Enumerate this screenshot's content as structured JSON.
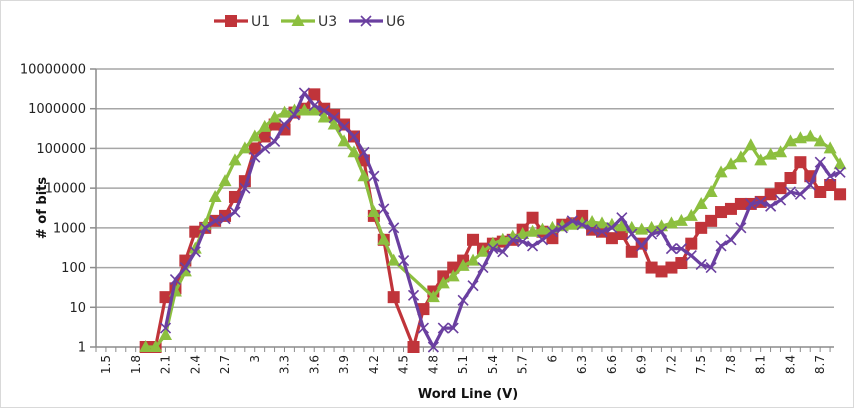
{
  "chart_data": {
    "type": "line",
    "title": "",
    "xlabel": "Word Line (V)",
    "ylabel": "# of bits",
    "yscale": "log",
    "ylim": [
      1,
      10000000
    ],
    "xlim": [
      1.5,
      8.9
    ],
    "grid": "horizontal",
    "legend_position": "top",
    "y_tick_labels": [
      "1",
      "10",
      "100",
      "1000",
      "10000",
      "100000",
      "1000000",
      "10000000"
    ],
    "x_tick_labels": [
      "1.5",
      "1.8",
      "2.1",
      "2.4",
      "2.7",
      "3",
      "3.3",
      "3.6",
      "3.9",
      "4.2",
      "4.5",
      "4.8",
      "5.1",
      "5.4",
      "5.7",
      "6",
      "6.3",
      "6.6",
      "6.9",
      "7.2",
      "7.5",
      "7.8",
      "8.1",
      "8.4",
      "8.7"
    ],
    "series": [
      {
        "name": "U1",
        "color": "#c0343a",
        "marker": "square",
        "x": [
          1.9,
          2.0,
          2.1,
          2.2,
          2.3,
          2.4,
          2.5,
          2.6,
          2.7,
          2.8,
          2.9,
          3.0,
          3.1,
          3.2,
          3.3,
          3.4,
          3.5,
          3.6,
          3.7,
          3.8,
          3.9,
          4.0,
          4.1,
          4.2,
          4.3,
          4.4,
          4.6,
          4.7,
          4.8,
          4.9,
          5.0,
          5.1,
          5.2,
          5.3,
          5.4,
          5.5,
          5.6,
          5.7,
          5.8,
          5.9,
          6.0,
          6.1,
          6.2,
          6.3,
          6.4,
          6.5,
          6.6,
          6.7,
          6.8,
          6.9,
          7.0,
          7.1,
          7.2,
          7.3,
          7.4,
          7.5,
          7.6,
          7.7,
          7.8,
          7.9,
          8.0,
          8.1,
          8.2,
          8.3,
          8.4,
          8.5,
          8.6,
          8.7,
          8.8,
          8.9
        ],
        "values": [
          1,
          1,
          18,
          30,
          150,
          800,
          1000,
          1500,
          2000,
          6000,
          15000,
          100000,
          200000,
          400000,
          300000,
          800000,
          1000000,
          2300000,
          1000000,
          700000,
          400000,
          200000,
          50000,
          2000,
          500,
          18,
          1,
          9,
          25,
          60,
          100,
          150,
          500,
          300,
          400,
          450,
          500,
          900,
          1800,
          800,
          550,
          1200,
          1300,
          2000,
          900,
          800,
          550,
          700,
          250,
          400,
          100,
          80,
          100,
          130,
          400,
          1000,
          1500,
          2500,
          3000,
          4000,
          4000,
          4500,
          7000,
          10000,
          18000,
          45000,
          20000,
          8000,
          12000,
          7000
        ]
      },
      {
        "name": "U3",
        "color": "#8cbf3f",
        "marker": "triangle",
        "x": [
          1.9,
          2.0,
          2.1,
          2.2,
          2.3,
          2.4,
          2.5,
          2.6,
          2.7,
          2.8,
          2.9,
          3.0,
          3.1,
          3.2,
          3.3,
          3.4,
          3.5,
          3.6,
          3.7,
          3.8,
          3.9,
          4.0,
          4.1,
          4.2,
          4.3,
          4.4,
          4.8,
          4.9,
          5.0,
          5.1,
          5.2,
          5.3,
          5.4,
          5.5,
          5.6,
          5.7,
          5.8,
          5.9,
          6.0,
          6.1,
          6.2,
          6.3,
          6.4,
          6.5,
          6.6,
          6.7,
          6.8,
          6.9,
          7.0,
          7.1,
          7.2,
          7.3,
          7.4,
          7.5,
          7.6,
          7.7,
          7.8,
          7.9,
          8.0,
          8.1,
          8.2,
          8.3,
          8.4,
          8.5,
          8.6,
          8.7,
          8.8,
          8.9
        ],
        "values": [
          1,
          1,
          2,
          25,
          80,
          300,
          1200,
          6000,
          15000,
          50000,
          100000,
          200000,
          350000,
          600000,
          800000,
          900000,
          900000,
          900000,
          600000,
          400000,
          150000,
          80000,
          20000,
          2500,
          500,
          150,
          18,
          40,
          60,
          110,
          150,
          250,
          400,
          500,
          600,
          700,
          800,
          900,
          1000,
          1100,
          1200,
          1300,
          1400,
          1300,
          1200,
          1100,
          1000,
          900,
          1000,
          1100,
          1300,
          1500,
          2000,
          4000,
          8000,
          25000,
          40000,
          60000,
          120000,
          50000,
          70000,
          80000,
          150000,
          180000,
          200000,
          150000,
          100000,
          40000
        ]
      },
      {
        "name": "U6",
        "color": "#6a3fa0",
        "marker": "x",
        "x": [
          2.1,
          2.2,
          2.3,
          2.4,
          2.5,
          2.6,
          2.7,
          2.8,
          2.9,
          3.0,
          3.1,
          3.2,
          3.3,
          3.4,
          3.5,
          3.6,
          3.7,
          3.8,
          3.9,
          4.0,
          4.1,
          4.2,
          4.3,
          4.4,
          4.5,
          4.6,
          4.7,
          4.8,
          4.9,
          5.0,
          5.1,
          5.2,
          5.3,
          5.4,
          5.5,
          5.6,
          5.7,
          5.8,
          5.9,
          6.0,
          6.1,
          6.2,
          6.3,
          6.4,
          6.5,
          6.6,
          6.7,
          6.8,
          6.9,
          7.0,
          7.1,
          7.2,
          7.3,
          7.4,
          7.5,
          7.6,
          7.7,
          7.8,
          7.9,
          8.0,
          8.1,
          8.2,
          8.3,
          8.4,
          8.5,
          8.6,
          8.7,
          8.8,
          8.9
        ],
        "values": [
          3,
          50,
          100,
          250,
          1000,
          1500,
          1700,
          2500,
          10000,
          60000,
          100000,
          150000,
          400000,
          700000,
          2500000,
          1200000,
          900000,
          600000,
          350000,
          200000,
          80000,
          20000,
          3000,
          1000,
          150,
          20,
          3,
          1,
          3,
          3,
          15,
          35,
          100,
          300,
          250,
          500,
          450,
          350,
          500,
          800,
          1000,
          1500,
          1200,
          900,
          800,
          1000,
          1800,
          700,
          350,
          700,
          800,
          300,
          300,
          200,
          120,
          100,
          350,
          500,
          1000,
          4000,
          4500,
          3500,
          5000,
          8000,
          7000,
          12000,
          45000,
          20000,
          25000
        ]
      }
    ]
  },
  "legend": {
    "items": [
      {
        "label": "U1",
        "color": "#c0343a"
      },
      {
        "label": "U3",
        "color": "#8cbf3f"
      },
      {
        "label": "U6",
        "color": "#6a3fa0"
      }
    ]
  },
  "axes": {
    "x_title": "Word Line (V)",
    "y_title": "# of bits"
  }
}
